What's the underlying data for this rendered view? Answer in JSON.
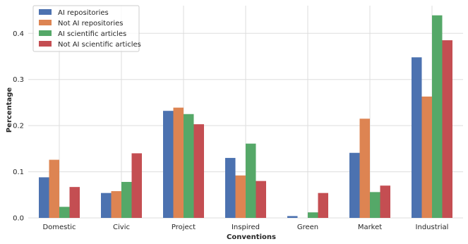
{
  "chart_data": {
    "type": "bar",
    "title": "",
    "xlabel": "Conventions",
    "ylabel": "Percentage",
    "categories": [
      "Domestic",
      "Civic",
      "Project",
      "Inspired",
      "Green",
      "Market",
      "Industrial"
    ],
    "ylim": [
      0,
      0.46
    ],
    "yticks": [
      "0.0",
      "0.1",
      "0.2",
      "0.3",
      "0.4"
    ],
    "grid": true,
    "legend_position": "top-left",
    "series": [
      {
        "name": "AI repositories",
        "color": "#4c72b0",
        "values": [
          0.088,
          0.054,
          0.232,
          0.13,
          0.004,
          0.141,
          0.348
        ]
      },
      {
        "name": "Not AI repositories",
        "color": "#dd8452",
        "values": [
          0.126,
          0.058,
          0.239,
          0.092,
          0.0,
          0.215,
          0.263
        ]
      },
      {
        "name": "AI scientific articles",
        "color": "#55a868",
        "values": [
          0.024,
          0.078,
          0.225,
          0.161,
          0.012,
          0.056,
          0.439
        ]
      },
      {
        "name": "Not AI scientific articles",
        "color": "#c44e52",
        "values": [
          0.067,
          0.14,
          0.203,
          0.08,
          0.054,
          0.07,
          0.385
        ]
      }
    ]
  }
}
